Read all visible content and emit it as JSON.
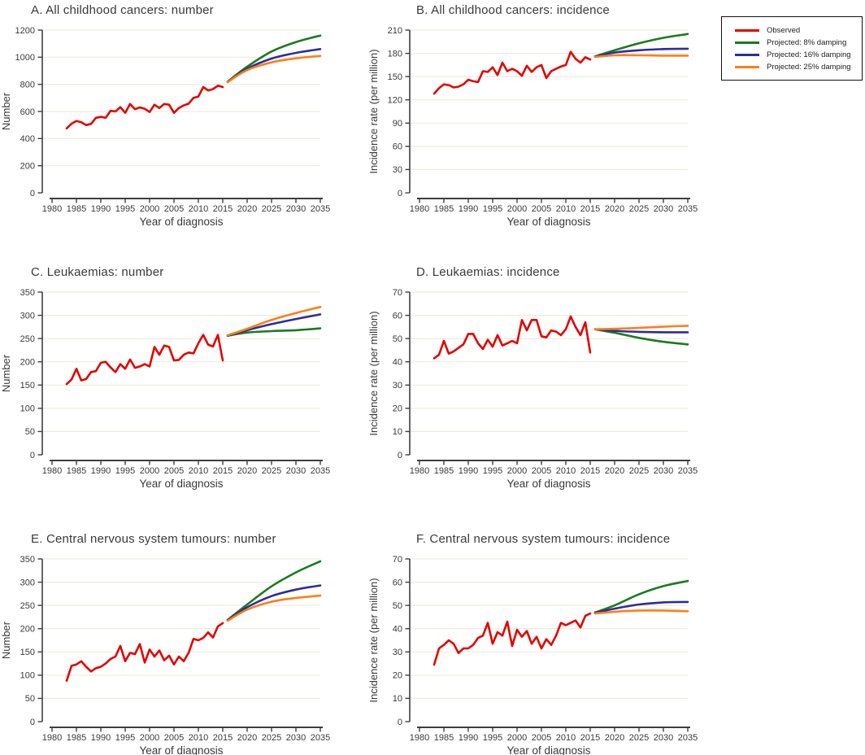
{
  "colors": {
    "observed": "#e10600",
    "damping8": "#1b7a1f",
    "damping16": "#2b2d9b",
    "damping25": "#ff7e17",
    "grid": "#edebe0",
    "axis": "#3f3f3f",
    "text": "#3a3a3a"
  },
  "legend": {
    "items": [
      {
        "label": "Observed",
        "color": "observed"
      },
      {
        "label": "Projected: 8% damping",
        "color": "damping8"
      },
      {
        "label": "Projected: 16% damping",
        "color": "damping16"
      },
      {
        "label": "Projected: 25% damping",
        "color": "damping25"
      }
    ]
  },
  "chart_data": [
    {
      "panel": "A",
      "type": "line",
      "title": "A. All childhood cancers: number",
      "xlabel": "Year of diagnosis",
      "ylabel": "Number",
      "xlim": [
        1980,
        2035
      ],
      "xstep": 5,
      "ylim": [
        0,
        1200
      ],
      "ystep": 200,
      "observed": {
        "name": "Observed",
        "color": "observed",
        "start_year": 1983,
        "values": [
          475,
          510,
          530,
          520,
          500,
          508,
          553,
          560,
          554,
          605,
          600,
          632,
          590,
          655,
          617,
          630,
          620,
          596,
          650,
          625,
          655,
          650,
          590,
          625,
          645,
          657,
          700,
          710,
          780,
          755,
          765,
          790,
          780
        ]
      },
      "projections": [
        {
          "name": "Projected: 8% damping",
          "color": "damping8",
          "points": [
            [
              2016,
              820
            ],
            [
              2020,
              930
            ],
            [
              2025,
              1042
            ],
            [
              2030,
              1112
            ],
            [
              2035,
              1160
            ]
          ]
        },
        {
          "name": "Projected: 16% damping",
          "color": "damping16",
          "points": [
            [
              2016,
              818
            ],
            [
              2020,
              915
            ],
            [
              2025,
              990
            ],
            [
              2030,
              1032
            ],
            [
              2035,
              1060
            ]
          ]
        },
        {
          "name": "Projected: 25% damping",
          "color": "damping25",
          "points": [
            [
              2016,
              816
            ],
            [
              2020,
              905
            ],
            [
              2025,
              962
            ],
            [
              2030,
              992
            ],
            [
              2035,
              1010
            ]
          ]
        }
      ]
    },
    {
      "panel": "B",
      "type": "line",
      "title": "B. All childhood cancers: incidence",
      "xlabel": "Year of diagnosis",
      "ylabel": "Incidence rate (per million)",
      "xlim": [
        1980,
        2035
      ],
      "xstep": 5,
      "ylim": [
        0,
        210
      ],
      "ystep": 30,
      "observed": {
        "name": "Observed",
        "color": "observed",
        "start_year": 1983,
        "values": [
          128,
          135,
          140,
          139,
          136,
          137,
          140,
          146,
          144,
          143,
          157,
          156,
          162,
          152,
          168,
          157,
          160,
          157,
          151,
          164,
          156,
          162,
          165,
          148,
          157,
          160,
          163,
          165,
          182,
          173,
          168,
          175,
          172
        ]
      },
      "projections": [
        {
          "name": "Projected: 8% damping",
          "color": "damping8",
          "points": [
            [
              2016,
              176
            ],
            [
              2020,
              184
            ],
            [
              2025,
              193
            ],
            [
              2030,
              200
            ],
            [
              2035,
              205
            ]
          ]
        },
        {
          "name": "Projected: 16% damping",
          "color": "damping16",
          "points": [
            [
              2016,
              176
            ],
            [
              2020,
              181
            ],
            [
              2025,
              184
            ],
            [
              2030,
              185.5
            ],
            [
              2035,
              186
            ]
          ]
        },
        {
          "name": "Projected: 25% damping",
          "color": "damping25",
          "points": [
            [
              2016,
              175.5
            ],
            [
              2020,
              177.5
            ],
            [
              2025,
              177.5
            ],
            [
              2030,
              177
            ],
            [
              2035,
              177
            ]
          ]
        }
      ]
    },
    {
      "panel": "C",
      "type": "line",
      "title": "C. Leukaemias: number",
      "xlabel": "Year of diagnosis",
      "ylabel": "Number",
      "xlim": [
        1980,
        2035
      ],
      "xstep": 5,
      "ylim": [
        0,
        350
      ],
      "ystep": 50,
      "observed": {
        "name": "Observed",
        "color": "observed",
        "start_year": 1983,
        "values": [
          152,
          162,
          185,
          160,
          163,
          178,
          180,
          198,
          200,
          188,
          178,
          195,
          185,
          205,
          187,
          190,
          195,
          190,
          232,
          215,
          235,
          232,
          203,
          204,
          215,
          220,
          218,
          240,
          258,
          237,
          233,
          258,
          203
        ]
      },
      "projections": [
        {
          "name": "Projected: 8% damping",
          "color": "damping8",
          "points": [
            [
              2016,
              256
            ],
            [
              2020,
              263
            ],
            [
              2025,
              266
            ],
            [
              2030,
              268
            ],
            [
              2035,
              272
            ]
          ]
        },
        {
          "name": "Projected: 16% damping",
          "color": "damping16",
          "points": [
            [
              2016,
              256
            ],
            [
              2020,
              268
            ],
            [
              2025,
              281
            ],
            [
              2030,
              292
            ],
            [
              2035,
              302
            ]
          ]
        },
        {
          "name": "Projected: 25% damping",
          "color": "damping25",
          "points": [
            [
              2016,
              257
            ],
            [
              2020,
              271
            ],
            [
              2025,
              290
            ],
            [
              2030,
              305
            ],
            [
              2035,
              318
            ]
          ]
        }
      ]
    },
    {
      "panel": "D",
      "type": "line",
      "title": "D. Leukaemias: incidence",
      "xlabel": "Year of diagnosis",
      "ylabel": "Incidence rate (per million)",
      "xlim": [
        1980,
        2035
      ],
      "xstep": 5,
      "ylim": [
        0,
        70
      ],
      "ystep": 10,
      "observed": {
        "name": "Observed",
        "color": "observed",
        "start_year": 1983,
        "values": [
          41.5,
          43,
          49,
          43.5,
          44.5,
          46,
          47.5,
          52,
          52,
          48,
          45.5,
          49.5,
          46.5,
          51.5,
          47,
          48,
          49,
          48,
          58,
          53.5,
          58,
          58,
          51,
          50.5,
          53.5,
          53,
          51.5,
          54,
          59.5,
          55,
          51.5,
          57,
          44
        ]
      },
      "projections": [
        {
          "name": "Projected: 8% damping",
          "color": "damping8",
          "points": [
            [
              2016,
              54
            ],
            [
              2020,
              52.5
            ],
            [
              2025,
              50.3
            ],
            [
              2030,
              48.6
            ],
            [
              2035,
              47.5
            ]
          ]
        },
        {
          "name": "Projected: 16% damping",
          "color": "damping16",
          "points": [
            [
              2016,
              54
            ],
            [
              2020,
              53.3
            ],
            [
              2025,
              52.9
            ],
            [
              2030,
              52.7
            ],
            [
              2035,
              52.7
            ]
          ]
        },
        {
          "name": "Projected: 25% damping",
          "color": "damping25",
          "points": [
            [
              2016,
              54
            ],
            [
              2020,
              54.2
            ],
            [
              2025,
              54.6
            ],
            [
              2030,
              55.1
            ],
            [
              2035,
              55.5
            ]
          ]
        }
      ]
    },
    {
      "panel": "E",
      "type": "line",
      "title": "E. Central nervous system tumours: number",
      "xlabel": "Year of diagnosis",
      "ylabel": "Number",
      "xlim": [
        1980,
        2035
      ],
      "xstep": 5,
      "ylim": [
        0,
        350
      ],
      "ystep": 50,
      "observed": {
        "name": "Observed",
        "color": "observed",
        "start_year": 1983,
        "values": [
          88,
          120,
          123,
          130,
          118,
          108,
          115,
          118,
          125,
          135,
          140,
          163,
          130,
          148,
          145,
          167,
          127,
          155,
          140,
          153,
          132,
          142,
          123,
          140,
          130,
          148,
          178,
          175,
          180,
          192,
          181,
          205,
          212
        ]
      },
      "projections": [
        {
          "name": "Projected: 8% damping",
          "color": "damping8",
          "points": [
            [
              2016,
              219
            ],
            [
              2020,
              252
            ],
            [
              2025,
              291
            ],
            [
              2030,
              321
            ],
            [
              2035,
              345
            ]
          ]
        },
        {
          "name": "Projected: 16% damping",
          "color": "damping16",
          "points": [
            [
              2016,
              218
            ],
            [
              2020,
              246
            ],
            [
              2025,
              270
            ],
            [
              2030,
              284
            ],
            [
              2035,
              293
            ]
          ]
        },
        {
          "name": "Projected: 25% damping",
          "color": "damping25",
          "points": [
            [
              2016,
              217
            ],
            [
              2020,
              241
            ],
            [
              2025,
              258
            ],
            [
              2030,
              266
            ],
            [
              2035,
              271
            ]
          ]
        }
      ]
    },
    {
      "panel": "F",
      "type": "line",
      "title": "F. Central nervous system tumours: incidence",
      "xlabel": "Year of diagnosis",
      "ylabel": "Incidence rate (per million)",
      "xlim": [
        1980,
        2035
      ],
      "xstep": 5,
      "ylim": [
        0,
        70
      ],
      "ystep": 10,
      "observed": {
        "name": "Observed",
        "color": "observed",
        "start_year": 1983,
        "values": [
          24.5,
          31.5,
          33,
          35,
          33.5,
          29.5,
          31.5,
          31.5,
          33,
          36,
          37,
          42.5,
          33.5,
          38.5,
          37,
          43,
          32.5,
          39.5,
          36.5,
          39,
          33.5,
          36.5,
          31.5,
          35.5,
          33,
          37,
          42.5,
          41.5,
          42.5,
          43.5,
          40.5,
          45.5,
          46.5
        ]
      },
      "projections": [
        {
          "name": "Projected: 8% damping",
          "color": "damping8",
          "points": [
            [
              2016,
              47
            ],
            [
              2020,
              50
            ],
            [
              2025,
              54.8
            ],
            [
              2030,
              58.3
            ],
            [
              2035,
              60.5
            ]
          ]
        },
        {
          "name": "Projected: 16% damping",
          "color": "damping16",
          "points": [
            [
              2016,
              46.8
            ],
            [
              2020,
              48.6
            ],
            [
              2025,
              50.4
            ],
            [
              2030,
              51.3
            ],
            [
              2035,
              51.5
            ]
          ]
        },
        {
          "name": "Projected: 25% damping",
          "color": "damping25",
          "points": [
            [
              2016,
              46.5
            ],
            [
              2020,
              47.3
            ],
            [
              2025,
              47.8
            ],
            [
              2030,
              47.8
            ],
            [
              2035,
              47.5
            ]
          ]
        }
      ]
    }
  ]
}
